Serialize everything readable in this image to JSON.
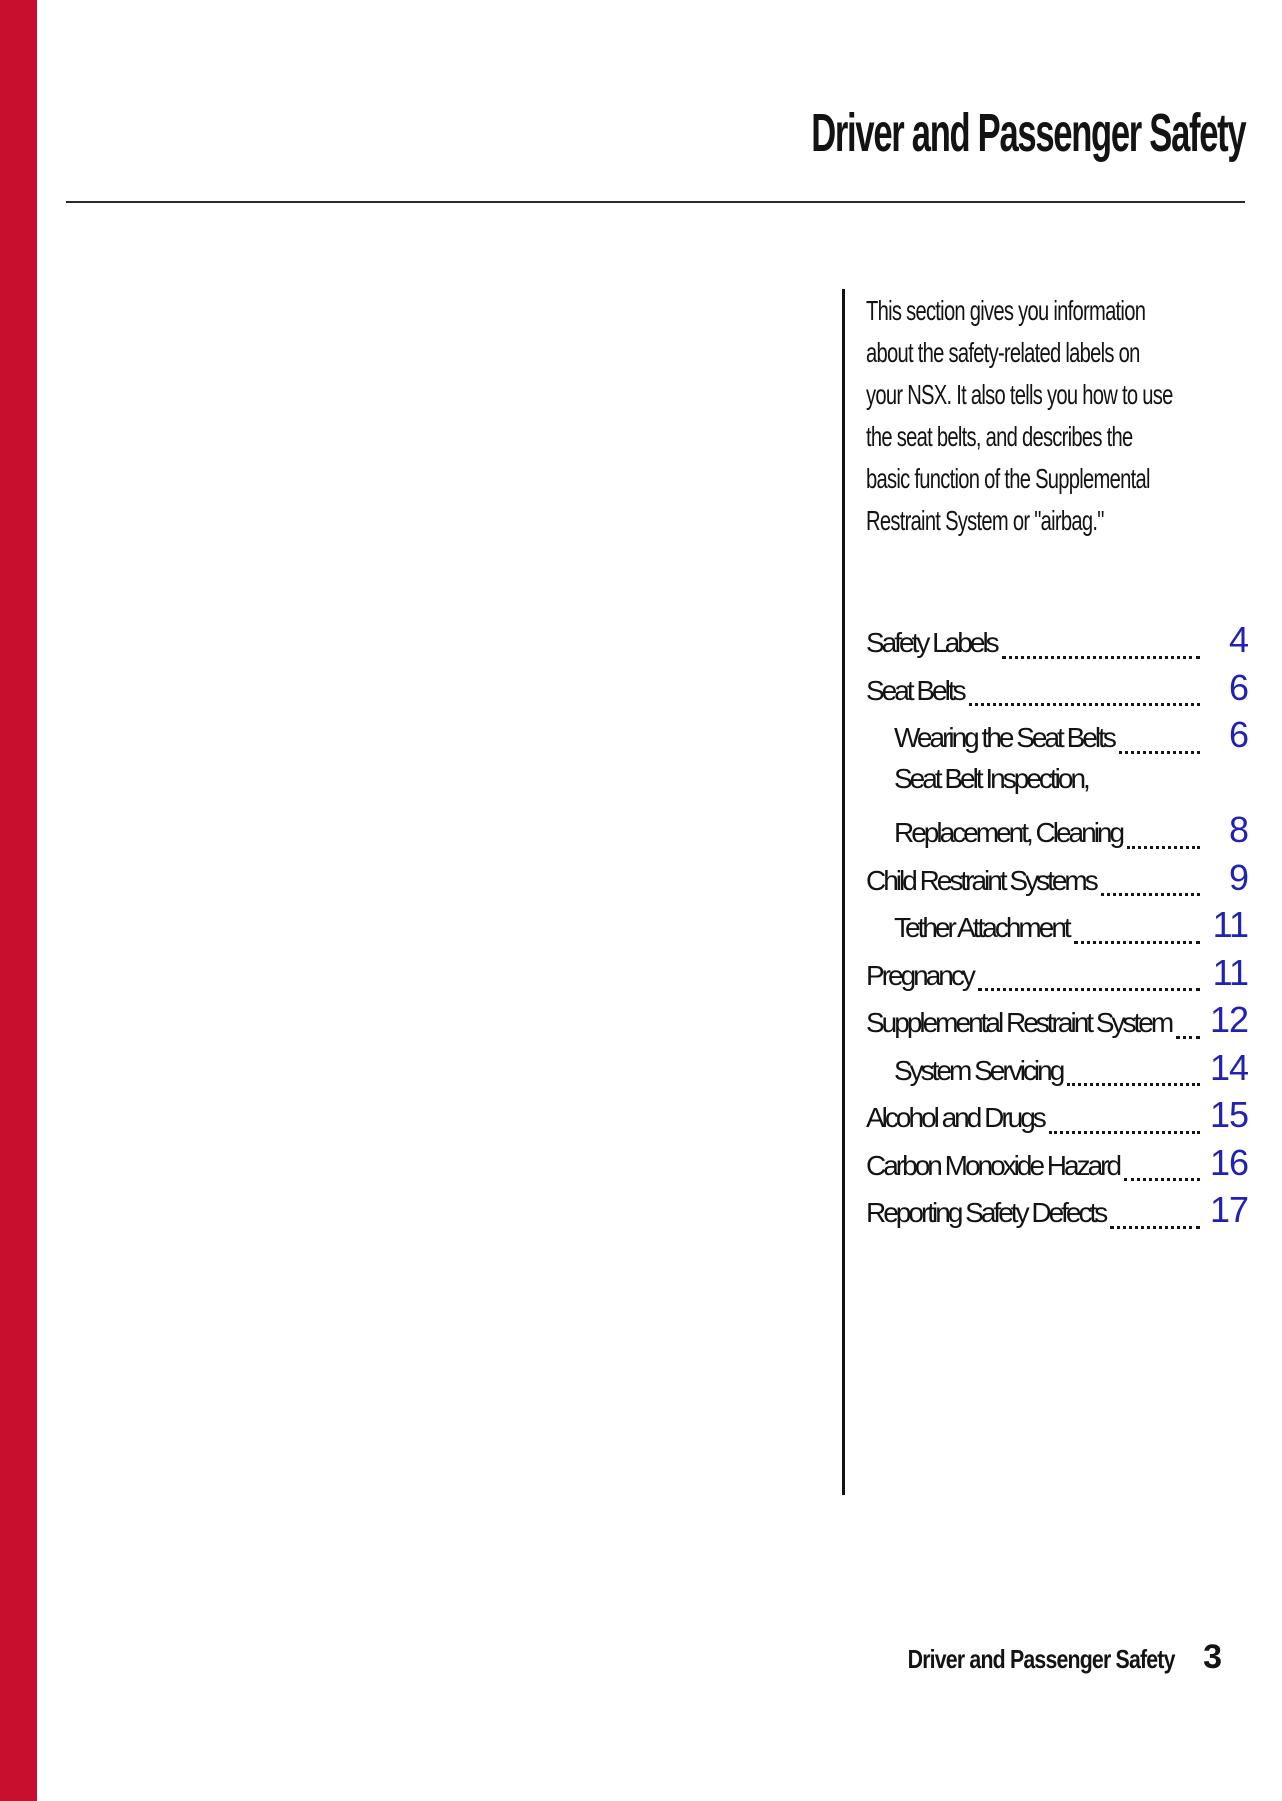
{
  "page": {
    "title": "Driver and Passenger Safety",
    "footer": {
      "label": "Driver and Passenger Safety",
      "page_number": "3"
    },
    "colors": {
      "accent_red": "#c8102e",
      "page_number_blue": "#2121b2"
    }
  },
  "intro": {
    "lines": [
      "This section gives you information",
      "about the safety-related labels on",
      "your NSX. It also tells you how to use",
      "the seat belts, and describes the",
      "basic function of the Supplemental",
      "Restraint System or \"airbag.\""
    ]
  },
  "toc": {
    "entries": [
      {
        "label": "Safety Labels",
        "page": "4",
        "indent": false
      },
      {
        "label": "Seat Belts",
        "page": "6",
        "indent": false
      },
      {
        "label": "Wearing the Seat Belts",
        "page": "6",
        "indent": true
      },
      {
        "label": "Seat Belt Inspection,",
        "page": "",
        "indent": true
      },
      {
        "label": "Replacement, Cleaning",
        "page": "8",
        "indent": true
      },
      {
        "label": "Child Restraint Systems",
        "page": "9",
        "indent": false
      },
      {
        "label": "Tether Attachment",
        "page": "11",
        "indent": true
      },
      {
        "label": "Pregnancy",
        "page": "11",
        "indent": false
      },
      {
        "label": "Supplemental Restraint System",
        "page": "12",
        "indent": false
      },
      {
        "label": "System Servicing",
        "page": "14",
        "indent": true
      },
      {
        "label": "Alcohol and Drugs",
        "page": "15",
        "indent": false
      },
      {
        "label": "Carbon Monoxide Hazard",
        "page": "16",
        "indent": false
      },
      {
        "label": "Reporting Safety Defects",
        "page": "17",
        "indent": false
      }
    ]
  }
}
